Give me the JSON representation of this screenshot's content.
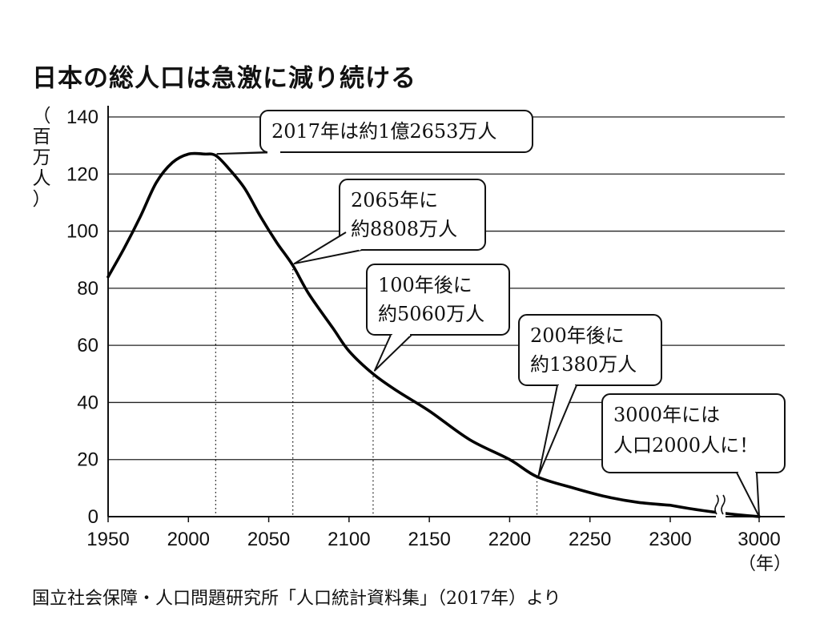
{
  "title": "日本の総人口は急激に減り続ける",
  "source": "国立社会保障・人口問題研究所「人口統計資料集」（2017年）より",
  "y_unit": "（百万人）",
  "y_unit_chars": [
    "（",
    "百",
    "万",
    "人",
    "）"
  ],
  "x_unit": "（年）",
  "chart_data": {
    "type": "line",
    "title": "日本の総人口は急激に減り続ける",
    "xlabel": "（年）",
    "ylabel": "（百万人）",
    "x_ticks": [
      1950,
      2000,
      2050,
      2100,
      2150,
      2200,
      2250,
      2300,
      3000
    ],
    "y_ticks": [
      0,
      20,
      40,
      60,
      80,
      100,
      120,
      140
    ],
    "ylim": [
      0,
      140
    ],
    "axis_break": "between 2300 and 3000",
    "grid": "horizontal",
    "series": [
      {
        "x": [
          1950,
          1960,
          1970,
          1980,
          1990,
          2000,
          2010,
          2017,
          2025,
          2035,
          2045,
          2055,
          2065,
          2075,
          2090,
          2100,
          2115,
          2130,
          2150,
          2175,
          2200,
          2217,
          2240,
          2260,
          2280,
          2300,
          3000
        ],
        "values": [
          84,
          94,
          105,
          117,
          124,
          127,
          127,
          126.5,
          122,
          115,
          105,
          96,
          88,
          78,
          66,
          58,
          50,
          44,
          37,
          27,
          20,
          14,
          10,
          7,
          5,
          4,
          0.02
        ]
      }
    ],
    "annotations": [
      {
        "x": 2017,
        "y": 126.5,
        "lines": [
          "2017年は約1億2653万人"
        ]
      },
      {
        "x": 2065,
        "y": 88.08,
        "lines": [
          "2065年に",
          "約8808万人"
        ]
      },
      {
        "x": 2115,
        "y": 50.6,
        "lines": [
          "100年後に",
          "約5060万人"
        ]
      },
      {
        "x": 2217,
        "y": 13.8,
        "lines": [
          "200年後に",
          "約1380万人"
        ]
      },
      {
        "x": 3000,
        "y": 0.02,
        "lines": [
          "3000年には",
          "人口2000人に！"
        ]
      }
    ]
  }
}
